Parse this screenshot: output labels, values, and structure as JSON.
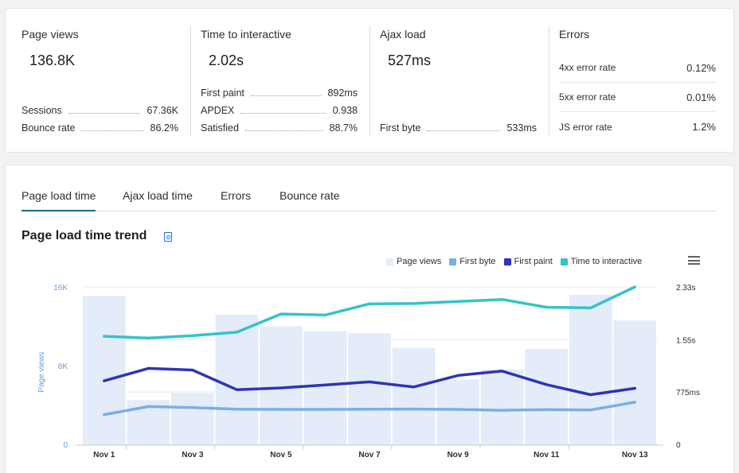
{
  "summary": {
    "page_views": {
      "title": "Page views",
      "value": "136.8K",
      "rows": [
        {
          "label": "Sessions",
          "value": "67.36K"
        },
        {
          "label": "Bounce rate",
          "value": "86.2%"
        }
      ]
    },
    "tti": {
      "title": "Time to interactive",
      "value": "2.02s",
      "rows": [
        {
          "label": "First paint",
          "value": "892ms"
        },
        {
          "label": "APDEX",
          "value": "0.938"
        },
        {
          "label": "Satisfied",
          "value": "88.7%"
        }
      ]
    },
    "ajax": {
      "title": "Ajax load",
      "value": "527ms",
      "rows": [
        {
          "label": "First byte",
          "value": "533ms"
        }
      ]
    },
    "errors": {
      "title": "Errors",
      "rows": [
        {
          "label": "4xx error rate",
          "value": "0.12%"
        },
        {
          "label": "5xx error rate",
          "value": "0.01%"
        },
        {
          "label": "JS error rate",
          "value": "1.2%"
        }
      ]
    }
  },
  "tabs": [
    {
      "label": "Page load time",
      "active": true
    },
    {
      "label": "Ajax load time",
      "active": false
    },
    {
      "label": "Errors",
      "active": false
    },
    {
      "label": "Bounce rate",
      "active": false
    }
  ],
  "chart_title": "Page load time trend",
  "chart_data": {
    "type": "bar+line",
    "x": [
      "Nov 1",
      "Nov 2",
      "Nov 3",
      "Nov 4",
      "Nov 5",
      "Nov 6",
      "Nov 7",
      "Nov 8",
      "Nov 9",
      "Nov 10",
      "Nov 11",
      "Nov 12",
      "Nov 13"
    ],
    "x_tick_labels": [
      "Nov 1",
      "Nov 3",
      "Nov 5",
      "Nov 7",
      "Nov 9",
      "Nov 11",
      "Nov 13"
    ],
    "left_axis": {
      "label": "Page views",
      "ticks": [
        "0",
        "8K",
        "16K"
      ],
      "range": [
        0,
        16000
      ]
    },
    "right_axis": {
      "ticks": [
        "0",
        "775ms",
        "1.55s",
        "2.33s"
      ],
      "range_ms": [
        0,
        2330
      ]
    },
    "series": [
      {
        "name": "Page views",
        "kind": "bar",
        "axis": "left",
        "color": "#e3ecf8",
        "values": [
          15100,
          4500,
          5200,
          13200,
          12000,
          11500,
          11300,
          9800,
          6600,
          7600,
          9700,
          15200,
          12600
        ]
      },
      {
        "name": "First byte",
        "kind": "line",
        "axis": "right",
        "color": "#7aaee6",
        "values": [
          440,
          560,
          545,
          520,
          518,
          518,
          520,
          522,
          518,
          505,
          515,
          510,
          625
        ]
      },
      {
        "name": "First paint",
        "kind": "line",
        "axis": "right",
        "color": "#2f35b5",
        "values": [
          940,
          1125,
          1100,
          810,
          835,
          880,
          925,
          850,
          1020,
          1085,
          885,
          735,
          830
        ]
      },
      {
        "name": "Time to interactive",
        "kind": "line",
        "axis": "right",
        "color": "#34c3c9",
        "values": [
          1600,
          1575,
          1610,
          1660,
          1930,
          1915,
          2080,
          2085,
          2115,
          2145,
          2030,
          2020,
          2330
        ]
      }
    ],
    "legend_position": "top-right",
    "grid": true
  }
}
